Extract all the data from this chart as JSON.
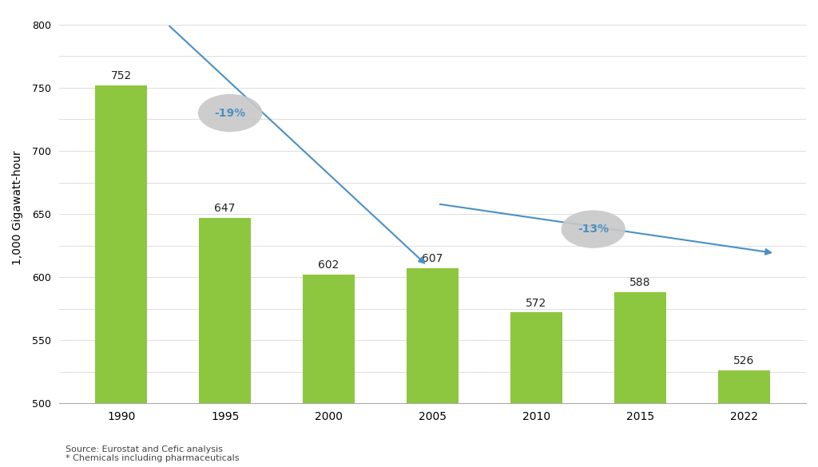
{
  "years": [
    "1990",
    "1995",
    "2000",
    "2005",
    "2010",
    "2015",
    "2022"
  ],
  "values": [
    752,
    647,
    602,
    607,
    572,
    588,
    526
  ],
  "bar_color": "#8DC63F",
  "background_color": "#ffffff",
  "ylabel": "1,000 Gigawatt-hour",
  "ylim": [
    500,
    810
  ],
  "ytick_positions": [
    500,
    525,
    550,
    575,
    600,
    625,
    650,
    675,
    700,
    725,
    750,
    775,
    800
  ],
  "ytick_labels": [
    "500",
    "",
    "550",
    "",
    "600",
    "",
    "650",
    "",
    "700",
    "",
    "750",
    "",
    "800"
  ],
  "bar_width": 0.5,
  "arrow_color": "#4A90C4",
  "bubble1_label": "-19%",
  "bubble2_label": "-13%",
  "bubble_facecolor": "#C8C8C8",
  "bubble_edgecolor": "#AAAAAA",
  "bubble_text_color": "#4A90C4",
  "label_fontsize": 10,
  "bubble_fontsize": 10,
  "ylabel_fontsize": 10,
  "xtick_fontsize": 10,
  "ytick_fontsize": 9,
  "source_text": "Source: Eurostat and Cefic analysis\n* Chemicals including pharmaceuticals",
  "source_fontsize": 8,
  "grid_color": "#DDDDDD",
  "spine_color": "#AAAAAA"
}
